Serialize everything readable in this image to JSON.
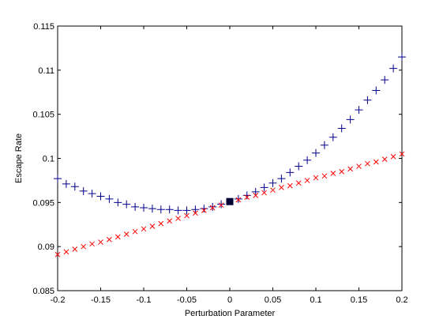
{
  "chart_data": {
    "type": "scatter",
    "title": "",
    "xlabel": "Perturbation Parameter",
    "ylabel": "Escape Rate",
    "xlim": [
      -0.2,
      0.2
    ],
    "ylim": [
      0.085,
      0.115
    ],
    "x_ticks": [
      -0.2,
      -0.15,
      -0.1,
      -0.05,
      0,
      0.05,
      0.1,
      0.15,
      0.2
    ],
    "x_tick_labels": [
      "-0.2",
      "-0.15",
      "-0.1",
      "-0.05",
      "0",
      "0.05",
      "0.1",
      "0.15",
      "0.2"
    ],
    "y_ticks": [
      0.085,
      0.09,
      0.095,
      0.1,
      0.105,
      0.11,
      0.115
    ],
    "y_tick_labels": [
      "0.085",
      "0.09",
      "0.095",
      "0.1",
      "0.105",
      "0.11",
      "0.115"
    ],
    "grid": false,
    "legend": "none",
    "series": [
      {
        "marker": "plus",
        "color": "#00008b",
        "x": [
          -0.2,
          -0.19,
          -0.18,
          -0.17,
          -0.16,
          -0.15,
          -0.14,
          -0.13,
          -0.12,
          -0.11,
          -0.1,
          -0.09,
          -0.08,
          -0.07,
          -0.06,
          -0.05,
          -0.04,
          -0.03,
          -0.02,
          -0.01,
          0.01,
          0.02,
          0.03,
          0.04,
          0.05,
          0.06,
          0.07,
          0.08,
          0.09,
          0.1,
          0.11,
          0.12,
          0.13,
          0.14,
          0.15,
          0.16,
          0.17,
          0.18,
          0.19,
          0.2
        ],
        "y": [
          0.0977,
          0.0971,
          0.0968,
          0.0963,
          0.096,
          0.0957,
          0.0954,
          0.095,
          0.0948,
          0.0945,
          0.0944,
          0.0943,
          0.0942,
          0.0942,
          0.0941,
          0.0941,
          0.0942,
          0.0943,
          0.0945,
          0.0948,
          0.0954,
          0.0958,
          0.0962,
          0.0967,
          0.0972,
          0.0977,
          0.0984,
          0.0991,
          0.0998,
          0.1006,
          0.1015,
          0.1024,
          0.1034,
          0.1044,
          0.1055,
          0.1066,
          0.1077,
          0.1089,
          0.1102,
          0.1115
        ]
      },
      {
        "marker": "x",
        "color": "#ff0000",
        "x": [
          -0.2,
          -0.19,
          -0.18,
          -0.17,
          -0.16,
          -0.15,
          -0.14,
          -0.13,
          -0.12,
          -0.11,
          -0.1,
          -0.09,
          -0.08,
          -0.07,
          -0.06,
          -0.05,
          -0.04,
          -0.03,
          -0.02,
          -0.01,
          0.01,
          0.02,
          0.03,
          0.04,
          0.05,
          0.06,
          0.07,
          0.08,
          0.09,
          0.1,
          0.11,
          0.12,
          0.13,
          0.14,
          0.15,
          0.16,
          0.17,
          0.18,
          0.19,
          0.2
        ],
        "y": [
          0.0891,
          0.0894,
          0.0897,
          0.09,
          0.0903,
          0.0905,
          0.0908,
          0.0911,
          0.0914,
          0.0917,
          0.092,
          0.0923,
          0.0926,
          0.0929,
          0.0932,
          0.0935,
          0.0938,
          0.0941,
          0.0944,
          0.0947,
          0.0953,
          0.0956,
          0.0958,
          0.0961,
          0.0964,
          0.0967,
          0.0969,
          0.0972,
          0.0975,
          0.0978,
          0.098,
          0.0983,
          0.0985,
          0.0988,
          0.0991,
          0.0994,
          0.0996,
          0.0999,
          0.1002,
          0.1005
        ]
      },
      {
        "marker": "square",
        "color": "#000033",
        "x": [
          0
        ],
        "y": [
          0.0951
        ]
      }
    ]
  }
}
